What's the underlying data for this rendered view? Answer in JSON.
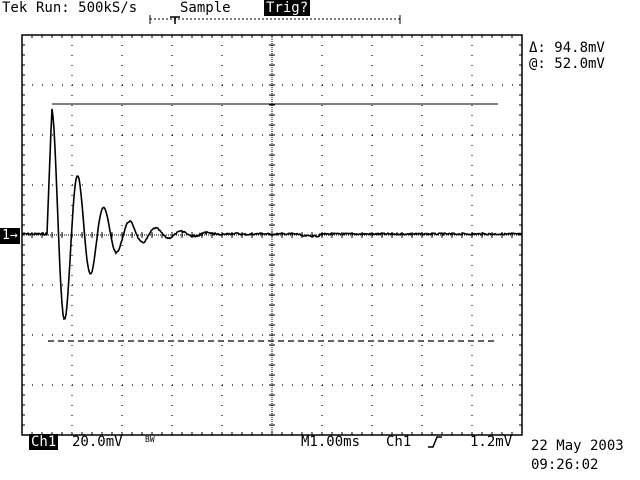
{
  "header": {
    "brand": "Tek",
    "run_status": "Run: 500kS/s",
    "acq_mode": "Sample",
    "trigger_status": "Trig?"
  },
  "cursor_readout": {
    "delta": "Δ: 94.8mV",
    "at": "@: 52.0mV"
  },
  "channel_marker": "1→",
  "footer": {
    "channel": "Ch1",
    "volts_div": "20.0mV",
    "bw_flag": "BW",
    "timebase": "M1.00ms",
    "trig_source": "Ch1",
    "trig_slope_icon": "rising-edge-icon",
    "trig_level": "1.2mV",
    "date": "22 May 2003",
    "time": "09:26:02"
  },
  "colors": {
    "background": "#ffffff",
    "trace": "#000000"
  }
}
